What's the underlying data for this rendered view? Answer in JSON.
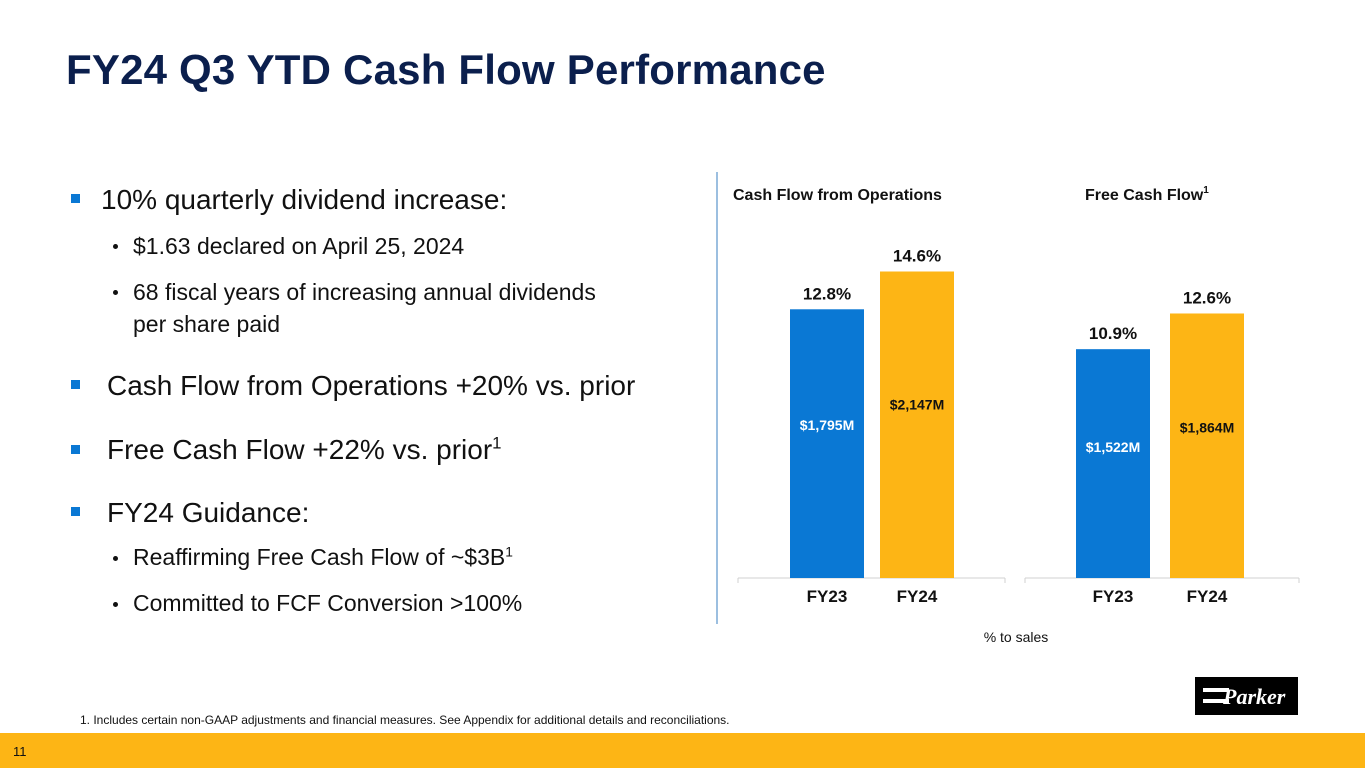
{
  "slide": {
    "title": "FY24 Q3 YTD Cash Flow Performance",
    "page_number": "11",
    "footnote": "1. Includes certain non-GAAP adjustments and financial measures. See Appendix for additional details and reconciliations.",
    "logo_text": "Parker"
  },
  "bullets": {
    "dividend": "10% quarterly dividend increase:",
    "dividend_sub1": "$1.63 declared on April 25, 2024",
    "dividend_sub2_line1": "68 fiscal years of increasing annual dividends",
    "dividend_sub2_line2": "per share paid",
    "cfo": "Cash Flow from Operations +20% vs. prior",
    "fcf": "Free Cash Flow +22% vs. prior",
    "fcf_sup": "1",
    "guidance": "FY24 Guidance:",
    "guidance_sub1": "Reaffirming Free Cash Flow of ~$3B",
    "guidance_sub1_sup": "1",
    "guidance_sub2": "Committed to FCF Conversion >100%"
  },
  "colors": {
    "title": "#0b1f4d",
    "fy23": "#0a78d4",
    "fy24": "#fdb515",
    "footer": "#fdb515"
  },
  "chart_data": [
    {
      "type": "bar",
      "title": "Cash Flow from Operations",
      "title_sup": "",
      "categories": [
        "FY23",
        "FY24"
      ],
      "percent_values": [
        12.8,
        14.6
      ],
      "percent_labels": [
        "12.8%",
        "14.6%"
      ],
      "amount_labels": [
        "$1,795M",
        "$2,147M"
      ],
      "ylim": [
        0,
        16
      ],
      "axis_note": "% to sales"
    },
    {
      "type": "bar",
      "title": "Free Cash Flow",
      "title_sup": "1",
      "categories": [
        "FY23",
        "FY24"
      ],
      "percent_values": [
        10.9,
        12.6
      ],
      "percent_labels": [
        "10.9%",
        "12.6%"
      ],
      "amount_labels": [
        "$1,522M",
        "$1,864M"
      ],
      "ylim": [
        0,
        16
      ],
      "axis_note": "% to sales"
    }
  ]
}
